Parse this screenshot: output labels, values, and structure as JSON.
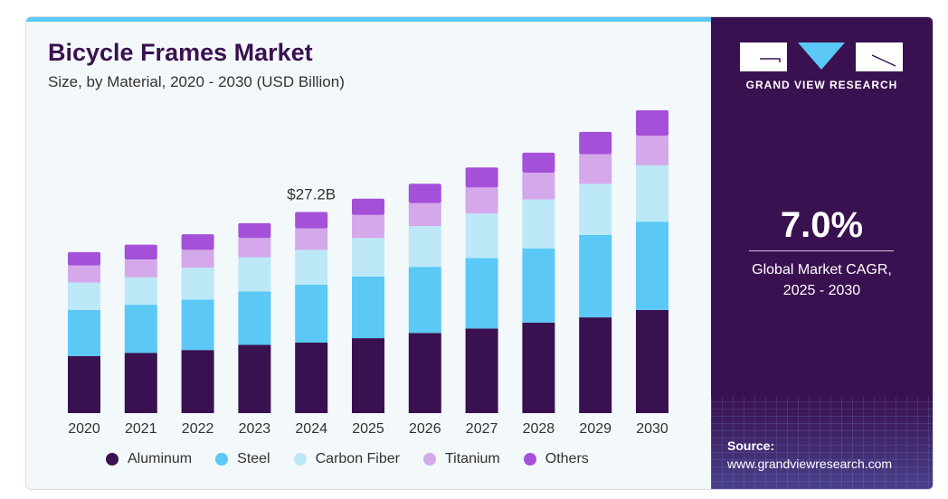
{
  "header": {
    "title": "Bicycle Frames Market",
    "subtitle": "Size, by Material, 2020 - 2030 (USD Billion)"
  },
  "panel": {
    "brand": "GRAND VIEW RESEARCH",
    "cagr_value": "7.0%",
    "cagr_label_1": "Global Market CAGR,",
    "cagr_label_2": "2025 - 2030",
    "source_label": "Source:",
    "source_url": "www.grandviewresearch.com"
  },
  "colors": {
    "Aluminum": "#3a1150",
    "Steel": "#5bc8f5",
    "Carbon Fiber": "#bde8f8",
    "Titanium": "#d4a8ea",
    "Others": "#a550d8"
  },
  "chart_data": {
    "type": "bar",
    "stacked": true,
    "title": "Bicycle Frames Market",
    "subtitle": "Size, by Material, 2020 - 2030 (USD Billion)",
    "categories": [
      "2020",
      "2021",
      "2022",
      "2023",
      "2024",
      "2025",
      "2026",
      "2027",
      "2028",
      "2029",
      "2030"
    ],
    "series": [
      {
        "name": "Aluminum",
        "values": [
          7.7,
          8.1,
          8.5,
          9.2,
          9.5,
          10.1,
          10.8,
          11.4,
          12.2,
          12.9,
          13.9
        ]
      },
      {
        "name": "Steel",
        "values": [
          6.2,
          6.5,
          6.8,
          7.2,
          7.8,
          8.3,
          8.9,
          9.5,
          10.0,
          11.1,
          11.9
        ]
      },
      {
        "name": "Carbon Fiber",
        "values": [
          3.7,
          3.7,
          4.3,
          4.6,
          4.7,
          5.2,
          5.5,
          6.0,
          6.6,
          6.9,
          7.6
        ]
      },
      {
        "name": "Titanium",
        "values": [
          2.3,
          2.4,
          2.4,
          2.6,
          2.9,
          3.1,
          3.1,
          3.5,
          3.6,
          4.0,
          4.0
        ]
      },
      {
        "name": "Others",
        "values": [
          1.8,
          2.0,
          2.1,
          2.0,
          2.2,
          2.2,
          2.6,
          2.7,
          2.7,
          3.0,
          3.4
        ]
      }
    ],
    "annotations": [
      {
        "category": "2024",
        "text": "$27.2B"
      }
    ],
    "legend": "bottom",
    "grid": false,
    "ylim": [
      0,
      42
    ]
  }
}
